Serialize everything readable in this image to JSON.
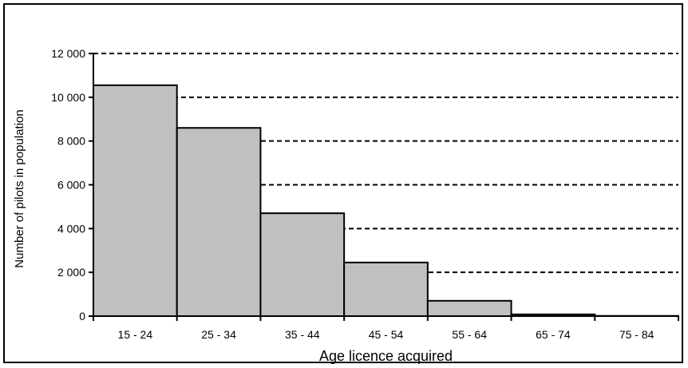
{
  "chart_data": {
    "type": "bar",
    "title": "",
    "xlabel": "Age licence acquired",
    "ylabel": "Number of pilots in population",
    "categories": [
      "15 - 24",
      "25 - 34",
      "35 - 44",
      "45 - 54",
      "55 - 64",
      "65 - 74",
      "75 - 84"
    ],
    "values": [
      10550,
      8600,
      4700,
      2450,
      700,
      80,
      10
    ],
    "yticks": [
      0,
      2000,
      4000,
      6000,
      8000,
      10000,
      12000
    ],
    "ytick_labels": [
      "0",
      "2 000",
      "4 000",
      "6 000",
      "8 000",
      "10 000",
      "12 000"
    ],
    "ylim": [
      0,
      12000
    ],
    "grid": "horizontal dashed",
    "legend": "none",
    "colors": {
      "bar_fill": "#c0c0c0",
      "bar_stroke": "#000000",
      "gridline": "#000000"
    }
  }
}
